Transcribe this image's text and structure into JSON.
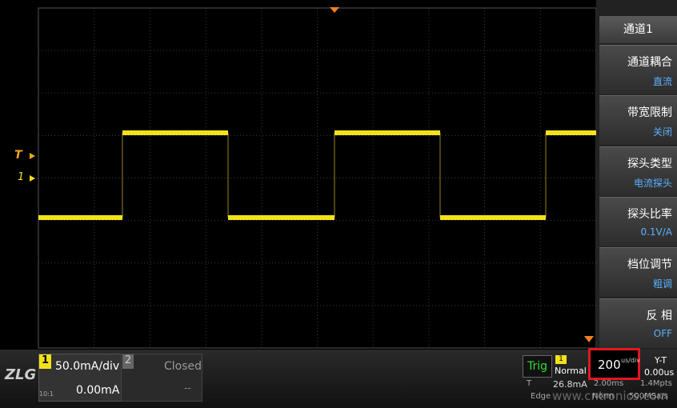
{
  "markers": {
    "trigger": "T",
    "channel": "1"
  },
  "menu": {
    "title": "通道1",
    "items": [
      {
        "label": "通道耦合",
        "value": "直流"
      },
      {
        "label": "带宽限制",
        "value": "关闭"
      },
      {
        "label": "探头类型",
        "value": "电流探头"
      },
      {
        "label": "探头比率",
        "value": "0.1V/A"
      },
      {
        "label": "档位调节",
        "value": "粗调"
      },
      {
        "label": "反 相",
        "value": "OFF"
      }
    ]
  },
  "bottom": {
    "logo": "ZLG",
    "ch1": {
      "number": "1",
      "ratio": "10:1",
      "scale": "50.0mA/div",
      "offset": "0.00mA"
    },
    "ch2": {
      "number": "2",
      "state": "Closed",
      "offset": "--"
    },
    "trigger": {
      "label": "Trig",
      "source": "1",
      "mode": "Normal",
      "level_label": "T",
      "level": "26.8mA",
      "type": "Edge",
      "sweep": "Norm"
    },
    "acquisition": {
      "length": "2.00ms",
      "points": "1.4Mpts",
      "rate": "500MSa/s"
    },
    "timebase": {
      "value": "200",
      "unit": "us/div",
      "mode": "Y-T",
      "delay": "0.00us"
    },
    "watermark": "www.cntronics.com"
  }
}
